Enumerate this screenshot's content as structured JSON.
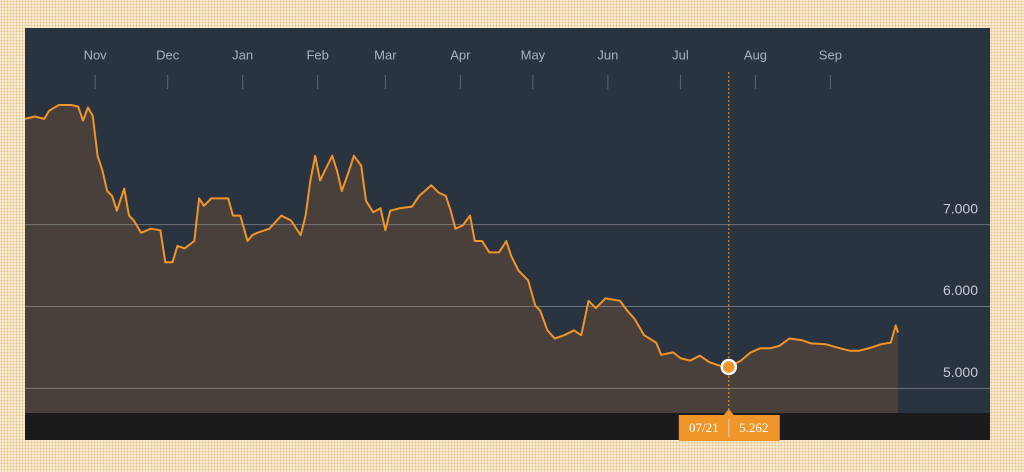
{
  "chart_data": {
    "type": "area",
    "xlim": [
      0,
      399
    ],
    "ylim": [
      4.7,
      9.4
    ],
    "xticks": [
      {
        "value": 29,
        "label": "Nov"
      },
      {
        "value": 59,
        "label": "Dec"
      },
      {
        "value": 90,
        "label": "Jan"
      },
      {
        "value": 121,
        "label": "Feb"
      },
      {
        "value": 149,
        "label": "Mar"
      },
      {
        "value": 180,
        "label": "Apr"
      },
      {
        "value": 210,
        "label": "May"
      },
      {
        "value": 241,
        "label": "Jun"
      },
      {
        "value": 271,
        "label": "Jul"
      },
      {
        "value": 302,
        "label": "Aug"
      },
      {
        "value": 333,
        "label": "Sep"
      }
    ],
    "yticks": [
      {
        "value": 5,
        "label": "5.000"
      },
      {
        "value": 6,
        "label": "6.000"
      },
      {
        "value": 7,
        "label": "7.000"
      }
    ],
    "grid": true,
    "highlight": {
      "x": 291,
      "x_label": "07/21"
    },
    "series": [
      {
        "color": "#f0952a",
        "fill": "#4a403b",
        "x": [
          0,
          4,
          8,
          10,
          14,
          19,
          22,
          24,
          26,
          28,
          30,
          32,
          34,
          36,
          38,
          41,
          43,
          45,
          48,
          52,
          56,
          58,
          61,
          63,
          66,
          70,
          72,
          74,
          77,
          84,
          86,
          89,
          92,
          94,
          96,
          101,
          106,
          110,
          114,
          116,
          118,
          120,
          122,
          124,
          127,
          129,
          131,
          134,
          136,
          139,
          141,
          144,
          147,
          149,
          151,
          155,
          160,
          163,
          168,
          171,
          174,
          176,
          178,
          181,
          184,
          186,
          189,
          192,
          196,
          199,
          201,
          204,
          208,
          211,
          213,
          216,
          219,
          223,
          227,
          230,
          233,
          236,
          240,
          246,
          249,
          252,
          256,
          261,
          263,
          268,
          271,
          275,
          279,
          283,
          287,
          291,
          296,
          300,
          304,
          308,
          312,
          316,
          321,
          325,
          331,
          337,
          341,
          345,
          350,
          354,
          358,
          360,
          361
        ],
        "values": [
          8.29,
          8.32,
          8.29,
          8.39,
          8.46,
          8.46,
          8.44,
          8.27,
          8.43,
          8.33,
          7.84,
          7.66,
          7.41,
          7.35,
          7.17,
          7.44,
          7.11,
          7.05,
          6.9,
          6.95,
          6.93,
          6.54,
          6.54,
          6.74,
          6.71,
          6.8,
          7.32,
          7.23,
          7.32,
          7.32,
          7.11,
          7.11,
          6.8,
          6.87,
          6.9,
          6.95,
          7.11,
          7.05,
          6.87,
          7.11,
          7.54,
          7.84,
          7.54,
          7.66,
          7.84,
          7.66,
          7.41,
          7.66,
          7.84,
          7.72,
          7.29,
          7.15,
          7.2,
          6.93,
          7.17,
          7.2,
          7.22,
          7.35,
          7.48,
          7.39,
          7.35,
          7.17,
          6.95,
          6.99,
          7.11,
          6.8,
          6.8,
          6.66,
          6.66,
          6.8,
          6.62,
          6.44,
          6.32,
          6.01,
          5.95,
          5.71,
          5.61,
          5.65,
          5.71,
          5.65,
          6.07,
          5.98,
          6.1,
          6.07,
          5.95,
          5.85,
          5.65,
          5.56,
          5.41,
          5.44,
          5.37,
          5.34,
          5.4,
          5.32,
          5.28,
          5.262,
          5.34,
          5.44,
          5.49,
          5.49,
          5.52,
          5.61,
          5.59,
          5.55,
          5.54,
          5.49,
          5.46,
          5.46,
          5.5,
          5.54,
          5.56,
          5.77,
          5.68
        ]
      }
    ]
  }
}
